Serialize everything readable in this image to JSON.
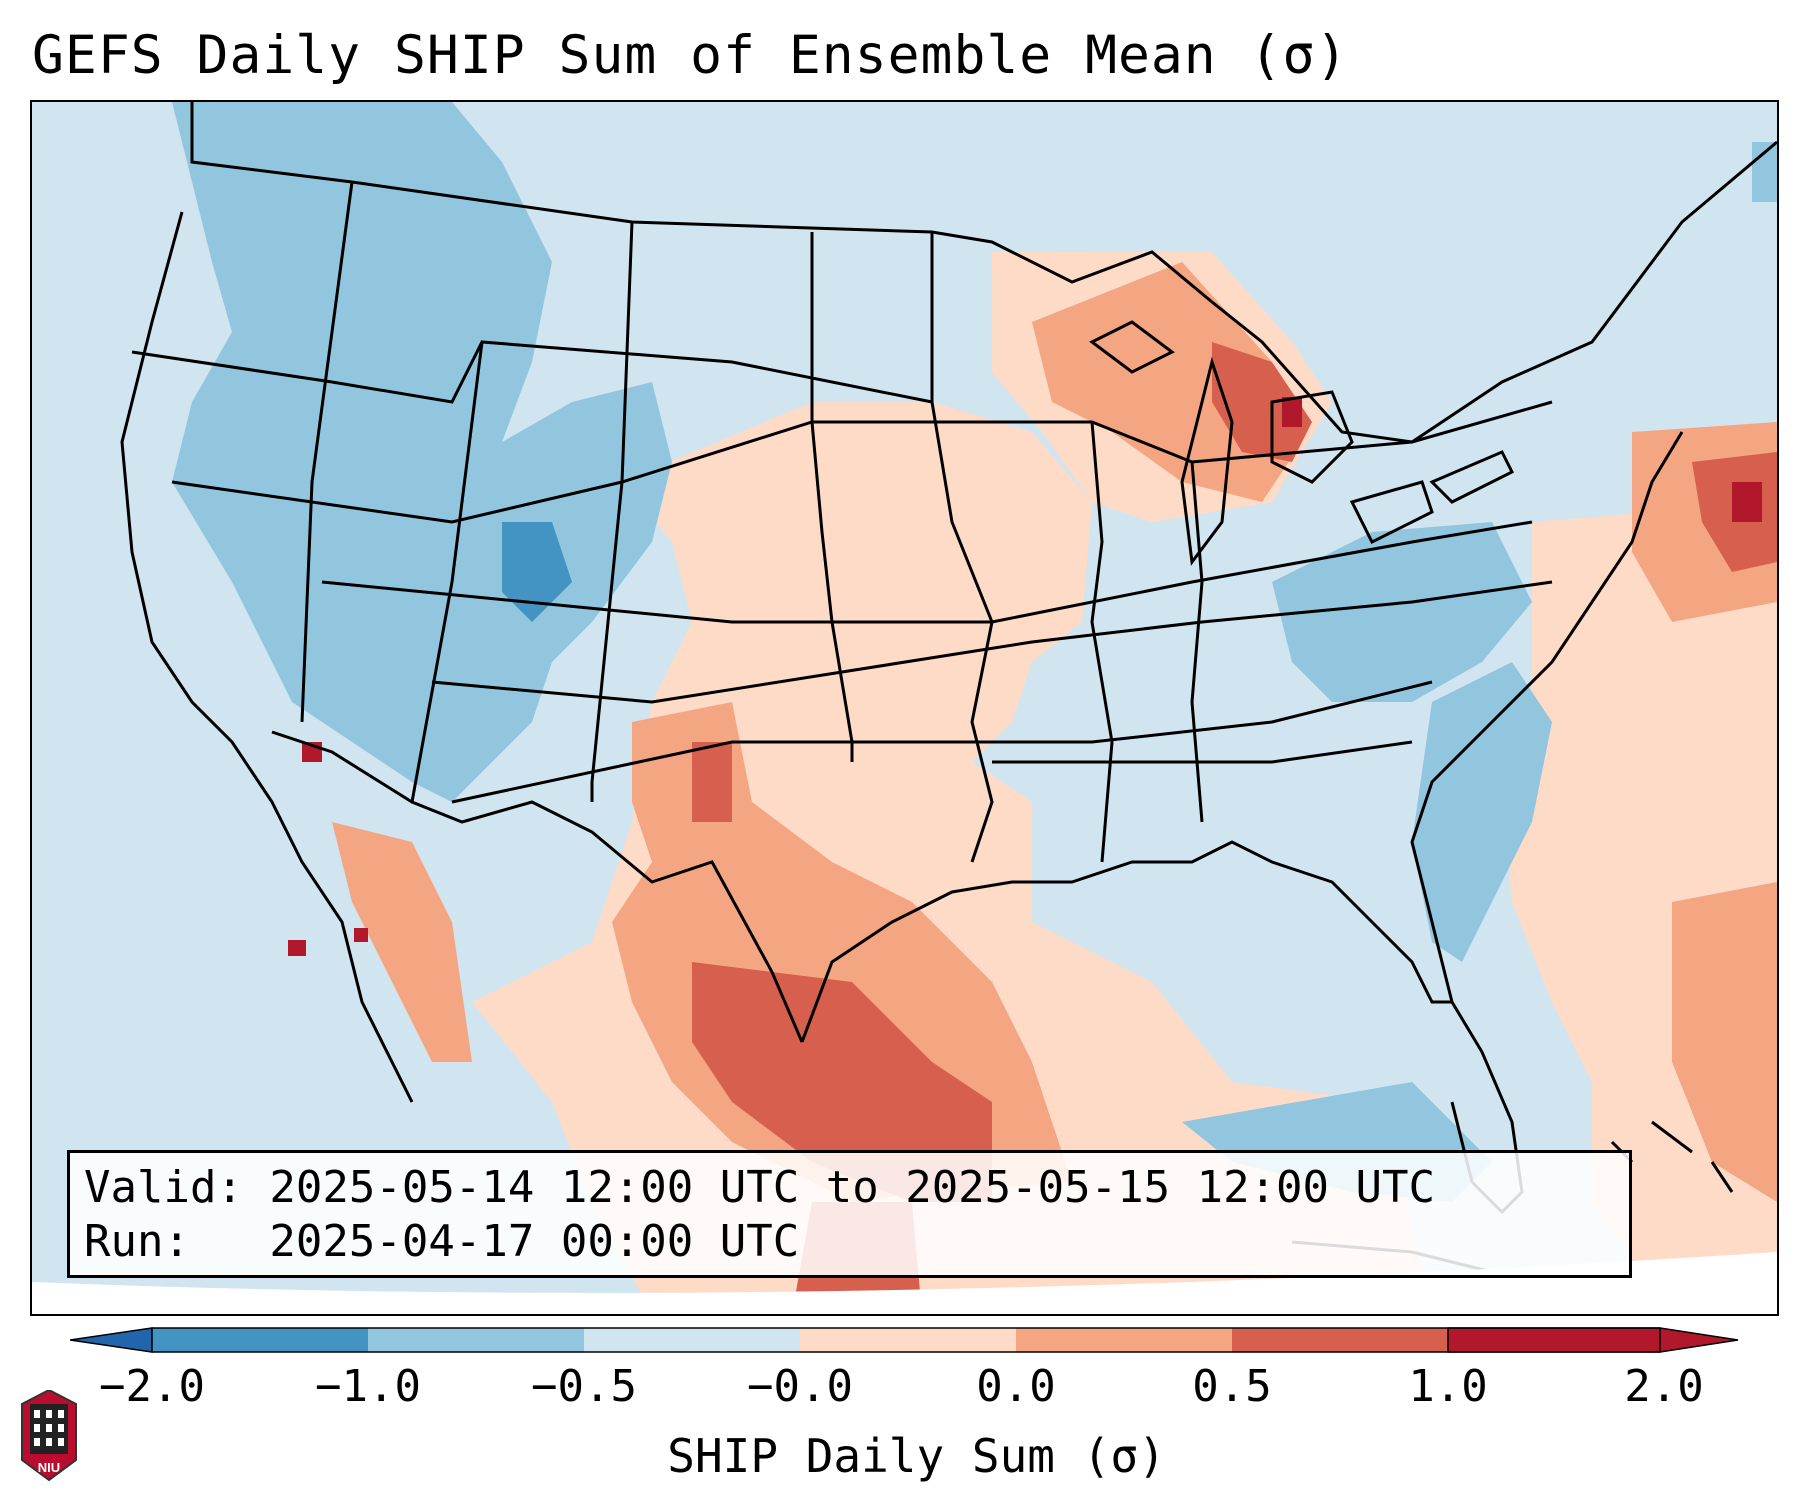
{
  "title": "GEFS Daily SHIP Sum of Ensemble Mean (σ)",
  "info": {
    "valid": "Valid: 2025-05-14 12:00 UTC to 2025-05-15 12:00 UTC",
    "run": "Run:   2025-04-17 00:00 UTC"
  },
  "colorbar": {
    "label": "SHIP Daily Sum (σ)",
    "ticks": [
      "−2.0",
      "−1.0",
      "−0.5",
      "−0.0",
      "0.0",
      "0.5",
      "1.0",
      "2.0"
    ],
    "colors": [
      "#2166ac",
      "#4393c3",
      "#92c5de",
      "#d1e5f0",
      "#fddbc7",
      "#f4a582",
      "#d6604d",
      "#b2182b"
    ],
    "extend": "both"
  },
  "logo": {
    "text": "NIU"
  },
  "colors": {
    "background": "#d1e5f0",
    "border": "#000000"
  }
}
